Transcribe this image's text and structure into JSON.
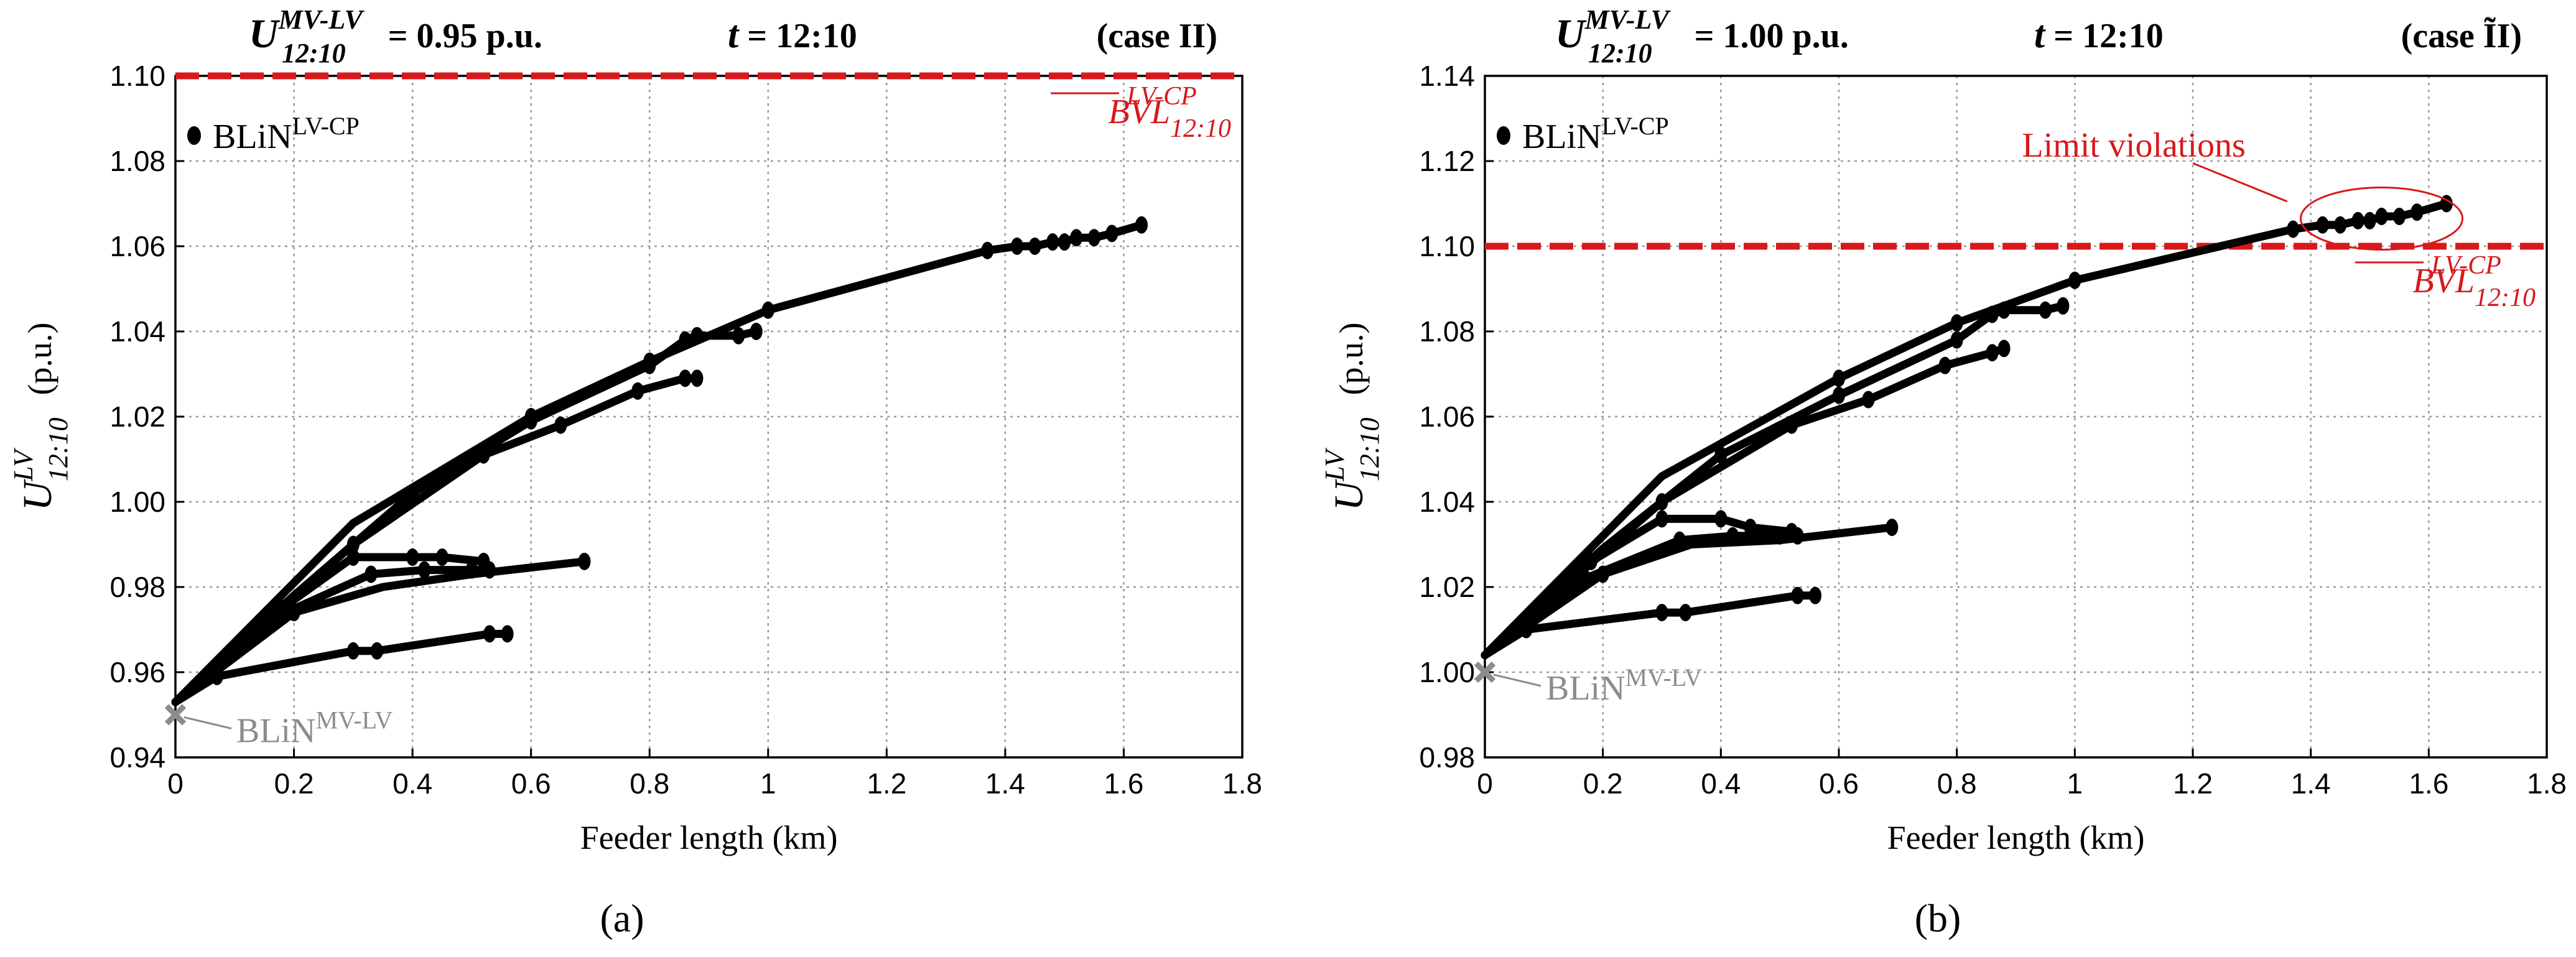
{
  "chart_data": [
    {
      "type": "line",
      "panel_label": "(a)",
      "header": {
        "u_main": "U",
        "u_sub": "12:10",
        "u_sup": "MV-LV",
        "u_value": "= 0.95 p.u.",
        "t_label": "t",
        "t_value": "= 12:10",
        "case": "(case II)"
      },
      "xlabel": "Feeder length (km)",
      "ylabel_main": "U",
      "ylabel_sup": "LV",
      "ylabel_sub": "12:10",
      "ylabel_unit": "(p.u.)",
      "xlim": [
        0,
        1.8
      ],
      "ylim": [
        0.94,
        1.1
      ],
      "xticks": [
        "0",
        "0.2",
        "0.4",
        "0.6",
        "0.8",
        "1",
        "1.2",
        "1.4",
        "1.6",
        "1.8"
      ],
      "yticks": [
        "0.94",
        "0.96",
        "0.98",
        "1.00",
        "1.02",
        "1.04",
        "1.06",
        "1.08",
        "1.10"
      ],
      "limit": {
        "value": 1.1,
        "label_main": "BVL",
        "label_sub": "12:10",
        "label_sup": "LV-CP",
        "color": "#d7191c"
      },
      "legend": {
        "main": "BLiN",
        "sup": "LV-CP"
      },
      "origin": {
        "x": 0,
        "y": 0.95,
        "label_main": "BLiN",
        "label_sup": "MV-LV",
        "color": "#8c8c8c"
      },
      "series": [
        {
          "name": "feeder-1",
          "x": [
            0,
            0.3,
            0.6,
            0.8,
            1.0,
            1.37,
            1.42,
            1.45,
            1.48,
            1.5,
            1.52,
            1.55,
            1.58,
            1.63
          ],
          "y": [
            0.953,
            0.995,
            1.02,
            1.033,
            1.045,
            1.059,
            1.06,
            1.06,
            1.061,
            1.061,
            1.062,
            1.062,
            1.063,
            1.065
          ],
          "marks": [
            2,
            3,
            4,
            5,
            6,
            7,
            8,
            9,
            10,
            11,
            12,
            13
          ]
        },
        {
          "name": "feeder-2",
          "x": [
            0,
            0.2,
            0.4,
            0.6,
            0.8,
            0.86,
            0.88,
            0.95,
            0.98
          ],
          "y": [
            0.953,
            0.978,
            1.002,
            1.019,
            1.032,
            1.038,
            1.039,
            1.039,
            1.04
          ],
          "marks": [
            2,
            3,
            4,
            5,
            6,
            7,
            8
          ]
        },
        {
          "name": "feeder-3",
          "x": [
            0,
            0.3,
            0.52,
            0.65,
            0.78,
            0.86,
            0.88
          ],
          "y": [
            0.953,
            0.99,
            1.011,
            1.018,
            1.026,
            1.029,
            1.029
          ],
          "marks": [
            1,
            2,
            3,
            4,
            5,
            6
          ]
        },
        {
          "name": "feeder-4",
          "x": [
            0,
            0.18,
            0.3,
            0.4,
            0.45,
            0.52
          ],
          "y": [
            0.953,
            0.975,
            0.987,
            0.987,
            0.987,
            0.986
          ],
          "marks": [
            1,
            2,
            3,
            4,
            5
          ]
        },
        {
          "name": "feeder-5",
          "x": [
            0,
            0.17,
            0.33,
            0.42,
            0.5,
            0.53
          ],
          "y": [
            0.953,
            0.973,
            0.983,
            0.984,
            0.984,
            0.984
          ],
          "marks": [
            1,
            2,
            3,
            4,
            5
          ]
        },
        {
          "name": "feeder-6",
          "x": [
            0,
            0.2,
            0.35,
            0.5,
            0.69
          ],
          "y": [
            0.953,
            0.974,
            0.98,
            0.983,
            0.986
          ],
          "marks": [
            1,
            4
          ]
        },
        {
          "name": "feeder-7",
          "x": [
            0,
            0.07,
            0.3,
            0.34,
            0.53,
            0.56
          ],
          "y": [
            0.953,
            0.959,
            0.965,
            0.965,
            0.969,
            0.969
          ],
          "marks": [
            1,
            2,
            3,
            4,
            5
          ]
        }
      ]
    },
    {
      "type": "line",
      "panel_label": "(b)",
      "header": {
        "u_main": "U",
        "u_sub": "12:10",
        "u_sup": "MV-LV",
        "u_value": "= 1.00 p.u.",
        "t_label": "t",
        "t_value": "= 12:10",
        "case": "(case ĨI)"
      },
      "xlabel": "Feeder length (km)",
      "ylabel_main": "U",
      "ylabel_sup": "LV",
      "ylabel_sub": "12:10",
      "ylabel_unit": "(p.u.)",
      "xlim": [
        0,
        1.8
      ],
      "ylim": [
        0.98,
        1.14
      ],
      "xticks": [
        "0",
        "0.2",
        "0.4",
        "0.6",
        "0.8",
        "1",
        "1.2",
        "1.4",
        "1.6",
        "1.8"
      ],
      "yticks": [
        "0.98",
        "1.00",
        "1.02",
        "1.04",
        "1.06",
        "1.08",
        "1.10",
        "1.12",
        "1.14"
      ],
      "limit": {
        "value": 1.1,
        "label_main": "BVL",
        "label_sub": "12:10",
        "label_sup": "LV-CP",
        "color": "#d7191c"
      },
      "legend": {
        "main": "BLiN",
        "sup": "LV-CP"
      },
      "annotation": {
        "text": "Limit violations",
        "color": "#d7191c"
      },
      "origin": {
        "x": 0,
        "y": 1.0,
        "label_main": "BLiN",
        "label_sup": "MV-LV",
        "color": "#8c8c8c"
      },
      "series": [
        {
          "name": "feeder-1",
          "x": [
            0,
            0.3,
            0.6,
            0.8,
            1.0,
            1.37,
            1.42,
            1.45,
            1.48,
            1.5,
            1.52,
            1.55,
            1.58,
            1.63
          ],
          "y": [
            1.004,
            1.046,
            1.069,
            1.082,
            1.092,
            1.104,
            1.105,
            1.105,
            1.106,
            1.106,
            1.107,
            1.107,
            1.108,
            1.11
          ],
          "marks": [
            2,
            3,
            4,
            5,
            6,
            7,
            8,
            9,
            10,
            11,
            12,
            13
          ]
        },
        {
          "name": "feeder-2",
          "x": [
            0,
            0.2,
            0.4,
            0.6,
            0.8,
            0.86,
            0.88,
            0.95,
            0.98
          ],
          "y": [
            1.004,
            1.029,
            1.051,
            1.065,
            1.078,
            1.084,
            1.085,
            1.085,
            1.086
          ],
          "marks": [
            2,
            3,
            4,
            5,
            6,
            7,
            8
          ]
        },
        {
          "name": "feeder-3",
          "x": [
            0,
            0.3,
            0.52,
            0.65,
            0.78,
            0.86,
            0.88
          ],
          "y": [
            1.004,
            1.04,
            1.058,
            1.064,
            1.072,
            1.075,
            1.076
          ],
          "marks": [
            1,
            2,
            3,
            4,
            5,
            6
          ]
        },
        {
          "name": "feeder-4",
          "x": [
            0,
            0.18,
            0.3,
            0.4,
            0.45,
            0.52
          ],
          "y": [
            1.004,
            1.026,
            1.036,
            1.036,
            1.034,
            1.033
          ],
          "marks": [
            1,
            2,
            3,
            4,
            5
          ]
        },
        {
          "name": "feeder-5",
          "x": [
            0,
            0.17,
            0.33,
            0.42,
            0.5,
            0.53
          ],
          "y": [
            1.004,
            1.022,
            1.031,
            1.032,
            1.032,
            1.032
          ],
          "marks": [
            1,
            2,
            3,
            4,
            5
          ]
        },
        {
          "name": "feeder-6",
          "x": [
            0,
            0.2,
            0.35,
            0.5,
            0.69
          ],
          "y": [
            1.004,
            1.023,
            1.03,
            1.031,
            1.034
          ],
          "marks": [
            1,
            4
          ]
        },
        {
          "name": "feeder-7",
          "x": [
            0,
            0.07,
            0.3,
            0.34,
            0.53,
            0.56
          ],
          "y": [
            1.004,
            1.01,
            1.014,
            1.014,
            1.018,
            1.018
          ],
          "marks": [
            1,
            2,
            3,
            4,
            5
          ]
        }
      ]
    }
  ]
}
